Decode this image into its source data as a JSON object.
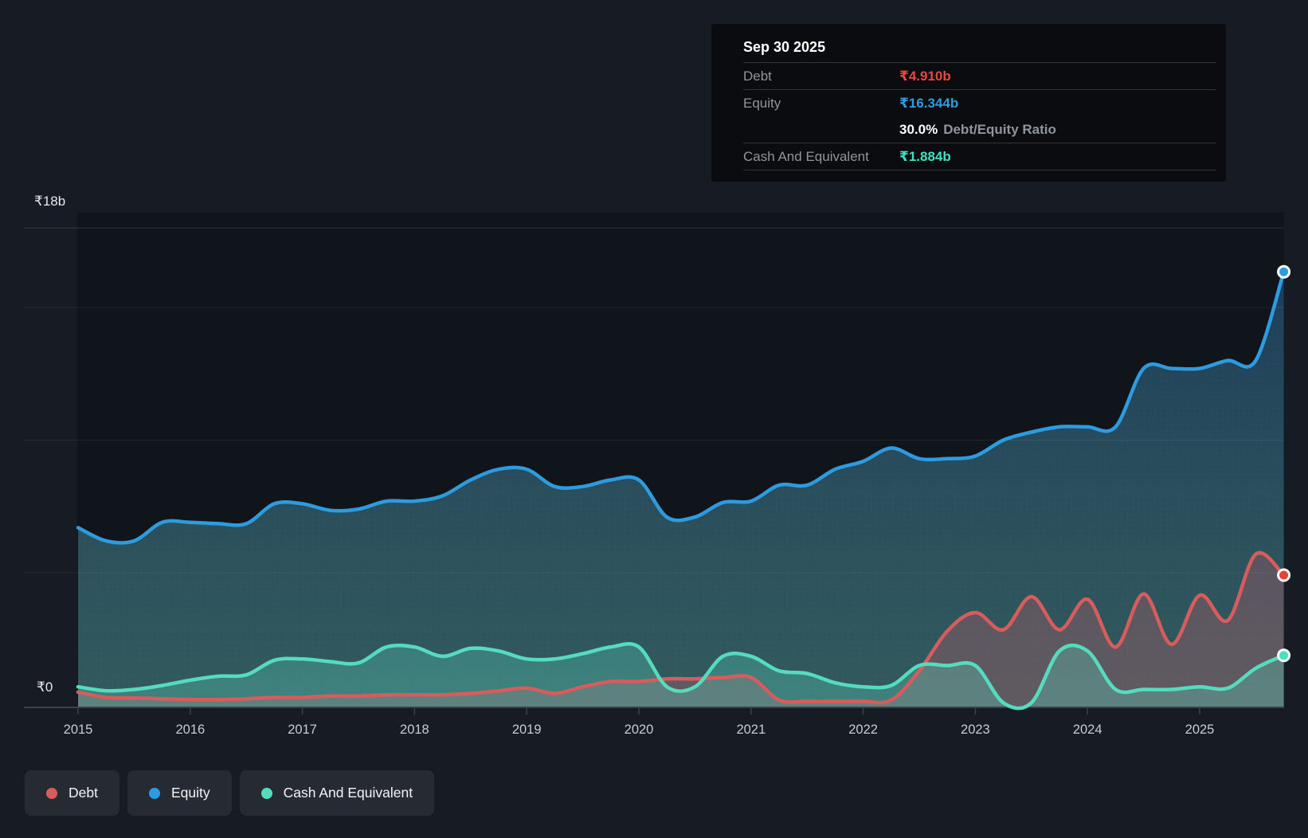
{
  "y_axis": {
    "top_label": "₹18b",
    "zero_label": "₹0"
  },
  "tooltip": {
    "date": "Sep 30 2025",
    "debt_label": "Debt",
    "debt_value": "₹4.910b",
    "debt_color": "#e8473e",
    "equity_label": "Equity",
    "equity_value": "₹16.344b",
    "equity_color": "#2f9de3",
    "ratio_value": "30.0%",
    "ratio_label": "Debt/Equity Ratio",
    "cash_label": "Cash And Equivalent",
    "cash_value": "₹1.884b",
    "cash_color": "#3fe2c0"
  },
  "legend": {
    "items": [
      {
        "label": "Debt",
        "color": "#d95c5c"
      },
      {
        "label": "Equity",
        "color": "#2d9be0"
      },
      {
        "label": "Cash And Equivalent",
        "color": "#55dcbe"
      }
    ]
  },
  "chart_data": {
    "type": "area",
    "x_unit": "year",
    "x": [
      2015.0,
      2015.25,
      2015.5,
      2015.75,
      2016.0,
      2016.25,
      2016.5,
      2016.75,
      2017.0,
      2017.25,
      2017.5,
      2017.75,
      2018.0,
      2018.25,
      2018.5,
      2018.75,
      2019.0,
      2019.25,
      2019.5,
      2019.75,
      2020.0,
      2020.25,
      2020.5,
      2020.75,
      2021.0,
      2021.25,
      2021.5,
      2021.75,
      2022.0,
      2022.25,
      2022.5,
      2022.75,
      2023.0,
      2023.25,
      2023.5,
      2023.75,
      2024.0,
      2024.25,
      2024.5,
      2024.75,
      2025.0,
      2025.25,
      2025.5,
      2025.75
    ],
    "series": [
      {
        "name": "Equity",
        "color": "#2d9be0",
        "dot_color": "#2d9be0",
        "values": [
          6.7,
          6.2,
          6.2,
          6.9,
          6.9,
          6.85,
          6.85,
          7.6,
          7.6,
          7.35,
          7.4,
          7.7,
          7.7,
          7.9,
          8.5,
          8.9,
          8.9,
          8.25,
          8.25,
          8.5,
          8.5,
          7.1,
          7.1,
          7.65,
          7.7,
          8.3,
          8.3,
          8.9,
          9.2,
          9.7,
          9.3,
          9.3,
          9.4,
          10.0,
          10.3,
          10.5,
          10.5,
          10.5,
          12.7,
          12.7,
          12.7,
          13.0,
          13.0,
          16.344
        ]
      },
      {
        "name": "Debt",
        "color": "#d95c5c",
        "dot_color": "#ea4138",
        "values": [
          0.5,
          0.3,
          0.28,
          0.25,
          0.22,
          0.22,
          0.25,
          0.3,
          0.3,
          0.35,
          0.35,
          0.4,
          0.4,
          0.4,
          0.45,
          0.55,
          0.65,
          0.45,
          0.7,
          0.9,
          0.9,
          1.0,
          1.0,
          1.05,
          1.05,
          0.2,
          0.15,
          0.15,
          0.15,
          0.2,
          1.3,
          2.8,
          3.5,
          2.85,
          4.1,
          2.85,
          4.0,
          2.2,
          4.2,
          2.3,
          4.15,
          3.2,
          5.7,
          4.91
        ]
      },
      {
        "name": "Cash And Equivalent",
        "color": "#55dcbe",
        "dot_color": "#47e2c2",
        "values": [
          0.7,
          0.55,
          0.6,
          0.75,
          0.95,
          1.1,
          1.15,
          1.7,
          1.75,
          1.65,
          1.6,
          2.2,
          2.2,
          1.85,
          2.15,
          2.05,
          1.75,
          1.75,
          1.95,
          2.2,
          2.2,
          0.7,
          0.7,
          1.85,
          1.85,
          1.3,
          1.2,
          0.85,
          0.7,
          0.75,
          1.5,
          1.5,
          1.5,
          0.1,
          0.1,
          2.05,
          2.05,
          0.6,
          0.6,
          0.6,
          0.7,
          0.65,
          1.4,
          1.884
        ]
      }
    ],
    "ylim": [
      0,
      18
    ],
    "gridline_values": [
      18,
      15,
      10,
      5
    ],
    "x_tick_years": [
      2015,
      2016,
      2017,
      2018,
      2019,
      2020,
      2021,
      2022,
      2023,
      2024,
      2025
    ],
    "x_tick_labels": [
      "2015",
      "2016",
      "2017",
      "2018",
      "2019",
      "2020",
      "2021",
      "2022",
      "2023",
      "2024",
      "2025"
    ],
    "grid": true,
    "legend_position": "bottom",
    "last_point_markers": true
  }
}
